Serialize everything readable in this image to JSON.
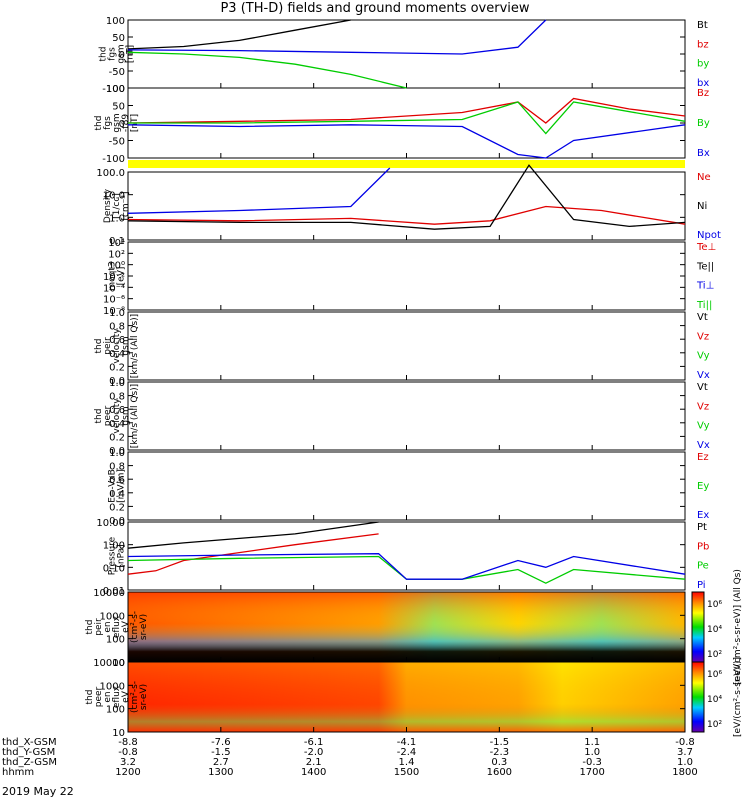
{
  "title": "P3 (TH-D) fields and ground moments overview",
  "date": "2019 May 22",
  "colors": {
    "black": "#000000",
    "red": "#e00000",
    "green": "#00cc00",
    "blue": "#0000e6",
    "yellow": "#ffff00"
  },
  "panels": [
    {
      "ylabel": [
        "thd",
        "fgs",
        "gsm",
        "[nT]"
      ],
      "ticks": [
        "100",
        "50",
        "0",
        "-50",
        "-100"
      ],
      "legend": [
        {
          "t": "Bt",
          "c": "black"
        },
        {
          "t": "bz",
          "c": "red"
        },
        {
          "t": "by",
          "c": "green"
        },
        {
          "t": "bx",
          "c": "blue"
        }
      ]
    },
    {
      "ylabel": [
        "thd",
        "fgs",
        "gsm",
        "-t89",
        "[nT]"
      ],
      "ticks": [
        "100",
        "50",
        "0",
        "-50",
        "-100"
      ],
      "legend": [
        {
          "t": "Bz",
          "c": "red"
        },
        {
          "t": "By",
          "c": "green"
        },
        {
          "t": "Bx",
          "c": "blue"
        }
      ]
    },
    {
      "ylabel": [
        "Density",
        "[1/cc]",
        "[cm⁻³]"
      ],
      "ticks": [
        "100.0",
        "10.0",
        "1.0",
        "0.1"
      ],
      "legend": [
        {
          "t": "Ne",
          "c": "red"
        },
        {
          "t": "Ni",
          "c": "black"
        },
        {
          "t": "Npot",
          "c": "blue"
        }
      ]
    },
    {
      "ylabel": [
        "moqt3",
        "[eV]"
      ],
      "ticks": [
        "10⁴",
        "10²",
        "10⁰",
        "10⁻²",
        "10⁻⁴",
        "10⁻⁶",
        "10⁻⁸"
      ],
      "legend": [
        {
          "t": "Te⊥",
          "c": "red"
        },
        {
          "t": "Te||",
          "c": "black"
        },
        {
          "t": "Ti⊥",
          "c": "blue"
        },
        {
          "t": "Ti||",
          "c": "green"
        }
      ]
    },
    {
      "ylabel": [
        "thd",
        "peir",
        "velocity",
        "gsm",
        "[km/s (All Qs)]"
      ],
      "ticks": [
        "1.0",
        "0.8",
        "0.6",
        "0.4",
        "0.2",
        "0.0"
      ],
      "legend": [
        {
          "t": "Vt",
          "c": "black"
        },
        {
          "t": "Vz",
          "c": "red"
        },
        {
          "t": "Vy",
          "c": "green"
        },
        {
          "t": "Vx",
          "c": "blue"
        }
      ]
    },
    {
      "ylabel": [
        "thd",
        "peer",
        "velocity",
        "gsm",
        "[km/s (All Qs)]"
      ],
      "ticks": [
        "1.0",
        "0.8",
        "0.6",
        "0.4",
        "0.2",
        "0.0"
      ],
      "legend": [
        {
          "t": "Vt",
          "c": "black"
        },
        {
          "t": "Vz",
          "c": "red"
        },
        {
          "t": "Vy",
          "c": "green"
        },
        {
          "t": "Vx",
          "c": "blue"
        }
      ]
    },
    {
      "ylabel": [
        "E=-VxB",
        "[mV/m]"
      ],
      "ticks": [
        "1.0",
        "0.8",
        "0.6",
        "0.4",
        "0.2",
        "0.0"
      ],
      "legend": [
        {
          "t": "Ez",
          "c": "red"
        },
        {
          "t": "Ey",
          "c": "green"
        },
        {
          "t": "Ex",
          "c": "blue"
        }
      ]
    },
    {
      "ylabel": [
        "Pressure",
        "[nPa]"
      ],
      "ticks": [
        "10.00",
        "1.00",
        "0.10",
        "0.01"
      ],
      "legend": [
        {
          "t": "Pt",
          "c": "black"
        },
        {
          "t": "Pb",
          "c": "red"
        },
        {
          "t": "Pe",
          "c": "green"
        },
        {
          "t": "Pi",
          "c": "blue"
        }
      ]
    },
    {
      "ylabel": [
        "thd",
        "peir",
        "en",
        "eflux",
        "eV",
        "(cm²-s-",
        "sr-eV)"
      ],
      "ticks": [
        "10000",
        "1000",
        "100",
        "10"
      ]
    },
    {
      "ylabel": [
        "thd",
        "peer",
        "en",
        "eflux",
        "eV",
        "(cm²-s-",
        "sr-eV)"
      ],
      "ticks": [
        "10000",
        "1000",
        "100",
        "10"
      ]
    }
  ],
  "colorbars": [
    {
      "ticks": [
        "10⁶",
        "10⁴",
        "10²"
      ],
      "label": "[eV/(cm²-s-sr-eV)] (All Qs)"
    },
    {
      "ticks": [
        "10⁶",
        "10⁴",
        "10²"
      ],
      "label": "[eV/(cm²-s-sr-eV)]"
    }
  ],
  "xaxis": {
    "rows": [
      {
        "label": "thd_X-GSM",
        "values": [
          "-8.8",
          "-7.6",
          "-6.1",
          "-4.1",
          "-1.5",
          "1.1",
          "-0.8"
        ]
      },
      {
        "label": "thd_Y-GSM",
        "values": [
          "-0.8",
          "-1.5",
          "-2.0",
          "-2.4",
          "-2.3",
          "1.0",
          "3.7"
        ]
      },
      {
        "label": "thd_Z-GSM",
        "values": [
          "3.2",
          "2.7",
          "2.1",
          "1.4",
          "0.3",
          "-0.3",
          "1.0"
        ]
      },
      {
        "label": "hhmm",
        "values": [
          "1200",
          "1300",
          "1400",
          "1500",
          "1600",
          "1700",
          "1800"
        ]
      }
    ]
  },
  "chart_data": {
    "type": "line",
    "title": "P3 (TH-D) fields and ground moments overview",
    "x": [
      "1200",
      "1300",
      "1400",
      "1500",
      "1600",
      "1700",
      "1800"
    ],
    "xlabel": "hhmm",
    "series": [
      {
        "panel": 0,
        "name": "Bt",
        "color": "#000000",
        "x": [
          0,
          0.1,
          0.2,
          0.3,
          0.4
        ],
        "values": [
          15,
          22,
          40,
          70,
          100
        ]
      },
      {
        "panel": 0,
        "name": "by",
        "color": "#00cc00",
        "x": [
          0,
          0.1,
          0.2,
          0.3,
          0.4,
          0.5
        ],
        "values": [
          5,
          0,
          -10,
          -30,
          -60,
          -100
        ]
      },
      {
        "panel": 0,
        "name": "bx",
        "color": "#0000e6",
        "x": [
          0,
          0.2,
          0.4,
          0.6,
          0.7,
          0.75
        ],
        "values": [
          12,
          10,
          5,
          0,
          20,
          100
        ]
      },
      {
        "panel": 1,
        "name": "Bz",
        "color": "#e00000",
        "x": [
          0,
          0.2,
          0.4,
          0.6,
          0.7,
          0.75,
          0.8,
          0.9,
          1.0
        ],
        "values": [
          0,
          5,
          10,
          30,
          60,
          0,
          70,
          40,
          20
        ]
      },
      {
        "panel": 1,
        "name": "By",
        "color": "#00cc00",
        "x": [
          0,
          0.2,
          0.4,
          0.6,
          0.7,
          0.75,
          0.8,
          1.0
        ],
        "values": [
          0,
          0,
          5,
          10,
          60,
          -30,
          60,
          5
        ]
      },
      {
        "panel": 1,
        "name": "Bx",
        "color": "#0000e6",
        "x": [
          0,
          0.2,
          0.4,
          0.6,
          0.7,
          0.75,
          0.8,
          1.0
        ],
        "values": [
          -5,
          -10,
          -5,
          -10,
          -90,
          -100,
          -50,
          -5
        ]
      },
      {
        "panel": 2,
        "name": "Ne",
        "color": "#e00000",
        "x": [
          0,
          0.2,
          0.4,
          0.55,
          0.65,
          0.75,
          0.85,
          1.0
        ],
        "values": [
          0.8,
          0.7,
          0.9,
          0.5,
          0.7,
          3,
          2,
          0.5
        ]
      },
      {
        "panel": 2,
        "name": "Ni",
        "color": "#000000",
        "x": [
          0,
          0.2,
          0.4,
          0.55,
          0.65,
          0.72,
          0.8,
          0.9,
          1.0
        ],
        "values": [
          0.7,
          0.6,
          0.6,
          0.3,
          0.4,
          200,
          0.8,
          0.4,
          0.6
        ]
      },
      {
        "panel": 2,
        "name": "Npot",
        "color": "#0000e6",
        "x": [
          0,
          0.2,
          0.4,
          0.47
        ],
        "values": [
          1.5,
          2,
          3,
          150
        ]
      },
      {
        "panel": 7,
        "name": "Pt",
        "color": "#000000",
        "x": [
          0,
          0.1,
          0.3,
          0.45
        ],
        "values": [
          0.7,
          1.2,
          3,
          10
        ]
      },
      {
        "panel": 7,
        "name": "Pb",
        "color": "#e00000",
        "x": [
          0,
          0.05,
          0.1,
          0.3,
          0.45
        ],
        "values": [
          0.05,
          0.07,
          0.2,
          1,
          3
        ]
      },
      {
        "panel": 7,
        "name": "Pe",
        "color": "#00cc00",
        "x": [
          0,
          0.2,
          0.45,
          0.5,
          0.6,
          0.7,
          0.75,
          0.8,
          1.0
        ],
        "values": [
          0.2,
          0.25,
          0.3,
          0.03,
          0.03,
          0.08,
          0.02,
          0.08,
          0.03
        ]
      },
      {
        "panel": 7,
        "name": "Pi",
        "color": "#0000e6",
        "x": [
          0,
          0.2,
          0.45,
          0.5,
          0.6,
          0.7,
          0.75,
          0.8,
          1.0
        ],
        "values": [
          0.3,
          0.35,
          0.4,
          0.03,
          0.03,
          0.2,
          0.1,
          0.3,
          0.05
        ]
      }
    ]
  }
}
